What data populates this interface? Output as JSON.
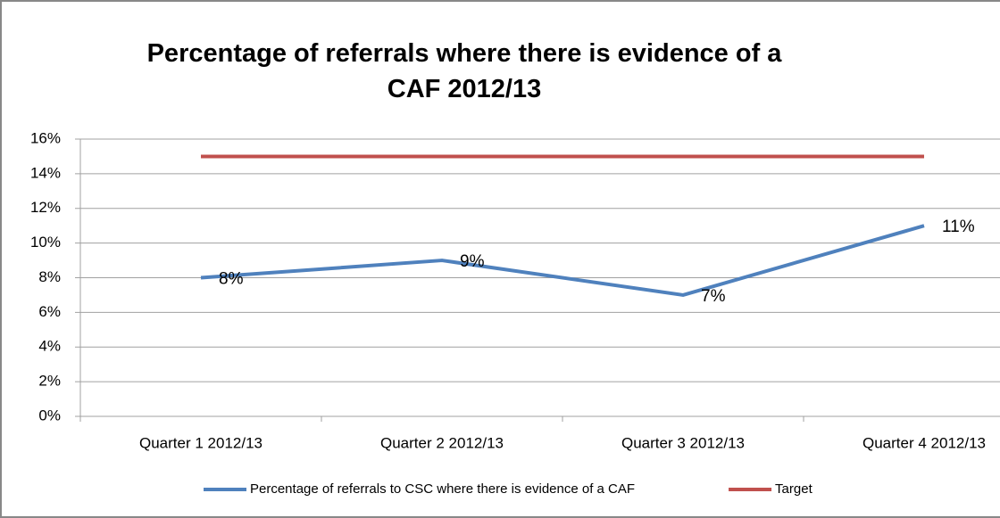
{
  "chart_data": {
    "type": "line",
    "title": "Percentage of referrals where there is evidence of a CAF 2012/13",
    "categories": [
      "Quarter 1 2012/13",
      "Quarter 2 2012/13",
      "Quarter 3 2012/13",
      "Quarter 4 2012/13"
    ],
    "series": [
      {
        "name": "Percentage of referrals to CSC where there is evidence of a CAF",
        "color": "#4f81bd",
        "values": [
          8,
          9,
          7,
          11
        ],
        "value_labels": [
          "8%",
          "9%",
          "7%",
          "11%"
        ]
      },
      {
        "name": "Target",
        "color": "#c0504d",
        "values": [
          15,
          15,
          15,
          15
        ]
      }
    ],
    "ylim": [
      0,
      16
    ],
    "yticks": [
      {
        "value": 0,
        "label": "0%"
      },
      {
        "value": 2,
        "label": "2%"
      },
      {
        "value": 4,
        "label": "4%"
      },
      {
        "value": 6,
        "label": "6%"
      },
      {
        "value": 8,
        "label": "8%"
      },
      {
        "value": 10,
        "label": "10%"
      },
      {
        "value": 12,
        "label": "12%"
      },
      {
        "value": 14,
        "label": "14%"
      },
      {
        "value": 16,
        "label": "16%"
      }
    ],
    "grid": true,
    "legend": "bottom"
  }
}
